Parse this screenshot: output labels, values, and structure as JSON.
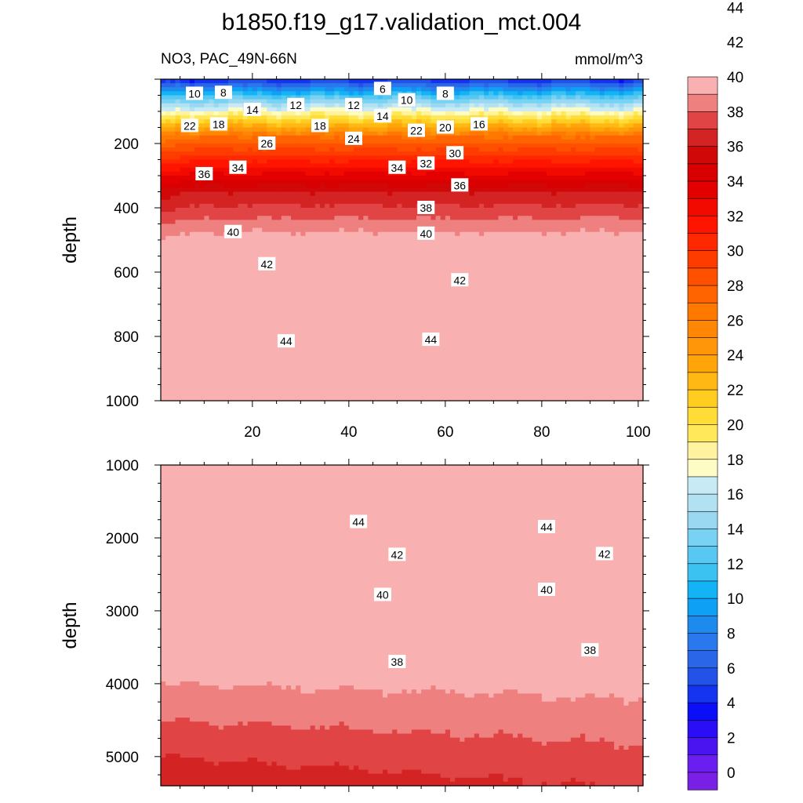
{
  "title": "b1850.f19_g17.validation_mct.004",
  "subtitle_left": "NO3, PAC_49N-66N",
  "subtitle_right": "mmol/m^3",
  "colorbar": {
    "tick_labels": [
      "0",
      "2",
      "4",
      "6",
      "8",
      "10",
      "12",
      "14",
      "16",
      "18",
      "20",
      "22",
      "24",
      "26",
      "28",
      "30",
      "32",
      "34",
      "36",
      "38",
      "40",
      "42",
      "44"
    ],
    "colors": [
      "#7a1fe6",
      "#6a1ff0",
      "#4a14f0",
      "#2a0ef5",
      "#0a0ff5",
      "#1434f0",
      "#2352e8",
      "#2a66e8",
      "#2a78ee",
      "#1f8aee",
      "#0ea0f5",
      "#12b4f5",
      "#3cc2f0",
      "#58c8f2",
      "#78d2f4",
      "#9ad8f2",
      "#b2e2f2",
      "#c8eaf4",
      "#fdfcc4",
      "#fff3a0",
      "#ffe85a",
      "#ffdc36",
      "#ffcc20",
      "#ffb814",
      "#ffa50a",
      "#ff960a",
      "#ff8705",
      "#ff7800",
      "#ff6400",
      "#ff5000",
      "#ff3c00",
      "#ff2800",
      "#ff1400",
      "#f20a00",
      "#e30000",
      "#d80000",
      "#d00808",
      "#d42323",
      "#e04444",
      "#ee8080",
      "#f8b0b0"
    ]
  },
  "chart_data": [
    {
      "type": "contour",
      "panel": "upper",
      "variable": "NO3",
      "region": "PAC_49N-66N",
      "units": "mmol/m^3",
      "xlabel": "",
      "ylabel": "depth",
      "xlim": [
        1,
        101
      ],
      "ylim": [
        1000,
        0
      ],
      "x_ticks": [
        "20",
        "40",
        "60",
        "80",
        "100"
      ],
      "y_ticks": [
        "200",
        "400",
        "600",
        "800",
        "1000"
      ],
      "contour_labels": [
        {
          "v": "10",
          "x": 8,
          "y": 45
        },
        {
          "v": "8",
          "x": 14,
          "y": 42
        },
        {
          "v": "14",
          "x": 20,
          "y": 95
        },
        {
          "v": "12",
          "x": 29,
          "y": 80
        },
        {
          "v": "12",
          "x": 41,
          "y": 80
        },
        {
          "v": "6",
          "x": 47,
          "y": 30
        },
        {
          "v": "10",
          "x": 52,
          "y": 65
        },
        {
          "v": "8",
          "x": 60,
          "y": 45
        },
        {
          "v": "16",
          "x": 67,
          "y": 140
        },
        {
          "v": "22",
          "x": 7,
          "y": 145
        },
        {
          "v": "18",
          "x": 13,
          "y": 140
        },
        {
          "v": "18",
          "x": 34,
          "y": 145
        },
        {
          "v": "14",
          "x": 47,
          "y": 115
        },
        {
          "v": "22",
          "x": 54,
          "y": 160
        },
        {
          "v": "20",
          "x": 60,
          "y": 150
        },
        {
          "v": "26",
          "x": 23,
          "y": 200
        },
        {
          "v": "24",
          "x": 41,
          "y": 185
        },
        {
          "v": "30",
          "x": 62,
          "y": 230
        },
        {
          "v": "36",
          "x": 10,
          "y": 295
        },
        {
          "v": "34",
          "x": 17,
          "y": 275
        },
        {
          "v": "34",
          "x": 50,
          "y": 275
        },
        {
          "v": "32",
          "x": 56,
          "y": 262
        },
        {
          "v": "36",
          "x": 63,
          "y": 330
        },
        {
          "v": "38",
          "x": 56,
          "y": 400
        },
        {
          "v": "40",
          "x": 16,
          "y": 475
        },
        {
          "v": "40",
          "x": 56,
          "y": 480
        },
        {
          "v": "42",
          "x": 23,
          "y": 575
        },
        {
          "v": "42",
          "x": 63,
          "y": 625
        },
        {
          "v": "44",
          "x": 27,
          "y": 815
        },
        {
          "v": "44",
          "x": 57,
          "y": 810
        }
      ],
      "levels_shown": {
        "surface_range": [
          4,
          22
        ],
        "0_200m_range": [
          4,
          30
        ],
        "at_1000m": [
          43,
          45
        ]
      }
    },
    {
      "type": "contour",
      "panel": "lower",
      "variable": "NO3",
      "region": "PAC_49N-66N",
      "units": "mmol/m^3",
      "xlabel": "",
      "ylabel": "depth",
      "xlim": [
        1,
        101
      ],
      "ylim": [
        5400,
        1000
      ],
      "x_ticks": [],
      "y_ticks": [
        "1000",
        "2000",
        "3000",
        "4000",
        "5000"
      ],
      "contour_labels": [
        {
          "v": "44",
          "x": 42,
          "y": 1780
        },
        {
          "v": "44",
          "x": 81,
          "y": 1850
        },
        {
          "v": "42",
          "x": 50,
          "y": 2230
        },
        {
          "v": "42",
          "x": 93,
          "y": 2220
        },
        {
          "v": "40",
          "x": 47,
          "y": 2780
        },
        {
          "v": "40",
          "x": 81,
          "y": 2710
        },
        {
          "v": "38",
          "x": 50,
          "y": 3700
        },
        {
          "v": "38",
          "x": 90,
          "y": 3540
        }
      ],
      "levels_shown": {
        "max": 45,
        "at_5300m": [
          36,
          37
        ]
      }
    }
  ]
}
